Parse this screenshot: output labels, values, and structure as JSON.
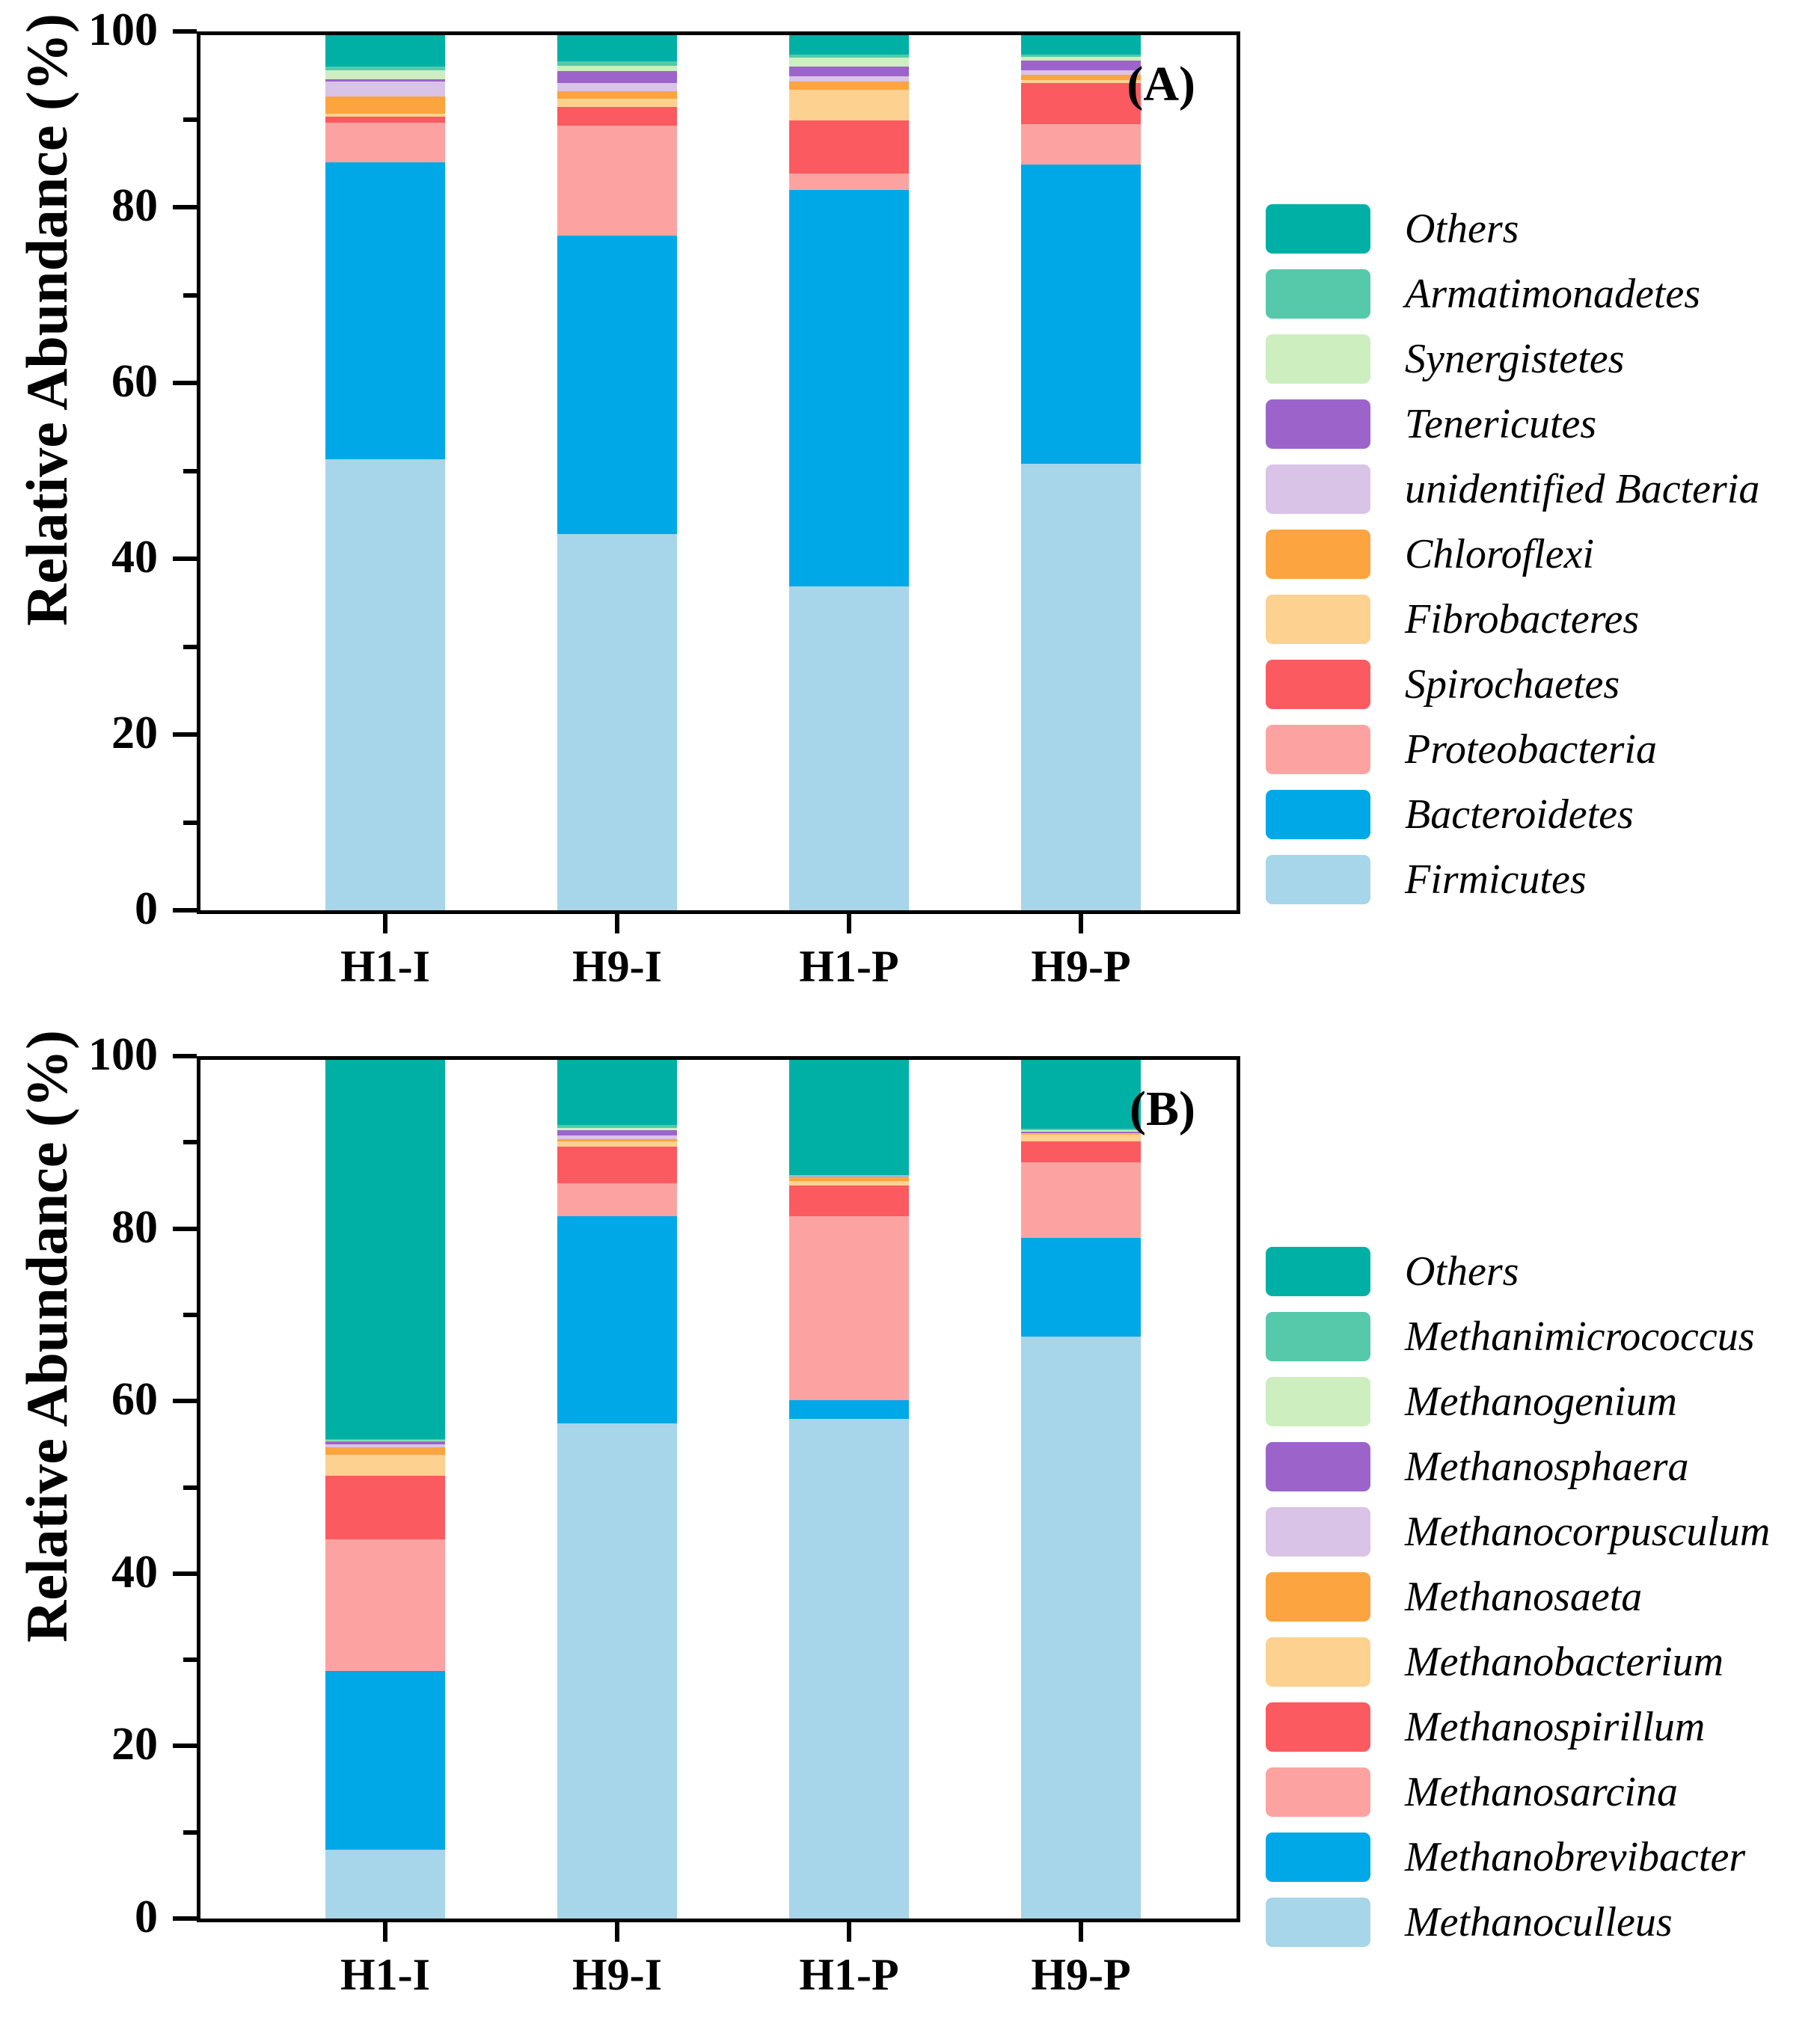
{
  "figure": {
    "y_axis_label": "Relative Abundance (%)"
  },
  "chart_data": [
    {
      "type": "bar",
      "stacked": true,
      "panel_label": "(A)",
      "ylabel": "Relative Abundance (%)",
      "ylim": [
        0,
        100
      ],
      "yticks": [
        0,
        20,
        40,
        60,
        80,
        100
      ],
      "minor_yticks": [
        10,
        30,
        50,
        70,
        90
      ],
      "grid": false,
      "legend_position": "right",
      "categories": [
        "H1-I",
        "H9-I",
        "H1-P",
        "H9-P"
      ],
      "series": [
        {
          "name": "Firmicutes",
          "color": "#a7d5e9",
          "values": [
            51.5,
            43.0,
            37.0,
            51.0
          ]
        },
        {
          "name": "Bacteroidetes",
          "color": "#00a8e8",
          "values": [
            34.0,
            34.1,
            45.3,
            34.2
          ]
        },
        {
          "name": "Proteobacteria",
          "color": "#fca3a1",
          "values": [
            4.5,
            12.6,
            1.9,
            4.6
          ]
        },
        {
          "name": "Spirochaetes",
          "color": "#fb5a60",
          "values": [
            0.7,
            2.1,
            6.1,
            4.7
          ]
        },
        {
          "name": "Fibrobacteres",
          "color": "#fdd190",
          "values": [
            0.3,
            0.9,
            3.5,
            0.4
          ]
        },
        {
          "name": "Chloroflexi",
          "color": "#fba440",
          "values": [
            2.0,
            0.9,
            0.9,
            0.6
          ]
        },
        {
          "name": "unidentified Bacteria",
          "color": "#d9c3e7",
          "values": [
            1.7,
            0.9,
            0.6,
            0.5
          ]
        },
        {
          "name": "Tenericutes",
          "color": "#9c64ca",
          "values": [
            0.3,
            1.4,
            1.1,
            1.1
          ]
        },
        {
          "name": "Synergistetes",
          "color": "#cdeebe",
          "values": [
            1.0,
            0.6,
            1.0,
            0.4
          ]
        },
        {
          "name": "Armatimonadetes",
          "color": "#55c9a9",
          "values": [
            0.4,
            0.5,
            0.4,
            0.3
          ]
        },
        {
          "name": "Others",
          "color": "#00b0a5",
          "values": [
            3.6,
            3.0,
            2.2,
            2.2
          ]
        }
      ]
    },
    {
      "type": "bar",
      "stacked": true,
      "panel_label": "(B)",
      "ylabel": "Relative Abundance (%)",
      "ylim": [
        0,
        100
      ],
      "yticks": [
        0,
        20,
        40,
        60,
        80,
        100
      ],
      "minor_yticks": [
        10,
        30,
        50,
        70,
        90
      ],
      "grid": false,
      "legend_position": "right",
      "categories": [
        "H1-I",
        "H9-I",
        "H1-P",
        "H9-P"
      ],
      "series": [
        {
          "name": "Methanoculleus",
          "color": "#a7d5e9",
          "values": [
            8.0,
            57.7,
            58.2,
            67.8
          ]
        },
        {
          "name": "Methanobrevibacter",
          "color": "#00a8e8",
          "values": [
            20.8,
            24.1,
            2.2,
            11.5
          ]
        },
        {
          "name": "Methanosarcina",
          "color": "#fca3a1",
          "values": [
            15.4,
            3.8,
            21.4,
            8.8
          ]
        },
        {
          "name": "Methanospirillum",
          "color": "#fb5a60",
          "values": [
            7.4,
            4.3,
            3.6,
            2.4
          ]
        },
        {
          "name": "Methanobacterium",
          "color": "#fdd190",
          "values": [
            2.4,
            0.6,
            0.5,
            0.8
          ]
        },
        {
          "name": "Methanosaeta",
          "color": "#fba440",
          "values": [
            0.9,
            0.3,
            0.3,
            0.1
          ]
        },
        {
          "name": "Methanocorpusculum",
          "color": "#d9c3e7",
          "values": [
            0.3,
            0.4,
            0.1,
            0.1
          ]
        },
        {
          "name": "Methanosphaera",
          "color": "#9c64ca",
          "values": [
            0.4,
            0.6,
            0.1,
            0.1
          ]
        },
        {
          "name": "Methanogenium",
          "color": "#cdeebe",
          "values": [
            0.1,
            0.3,
            0.1,
            0.2
          ]
        },
        {
          "name": "Methanimicrococcus",
          "color": "#55c9a9",
          "values": [
            0.1,
            0.3,
            0.1,
            0.2
          ]
        },
        {
          "name": "Others",
          "color": "#00b0a5",
          "values": [
            44.2,
            7.6,
            13.4,
            8.0
          ]
        }
      ]
    }
  ]
}
